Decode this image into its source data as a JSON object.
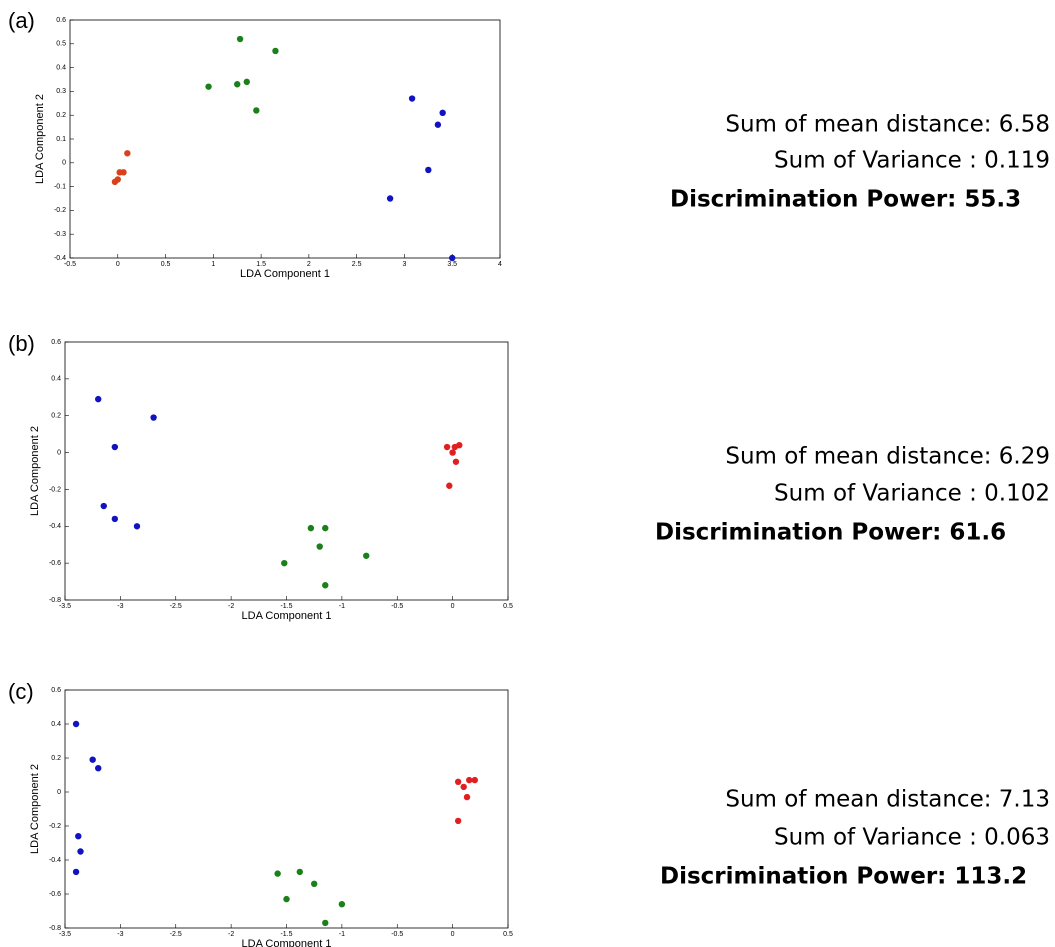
{
  "chart_data": [
    {
      "type": "scatter",
      "label": "(a)",
      "xlabel": "LDA Component 1",
      "ylabel": "LDA Component 2",
      "xlim": [
        -0.5,
        4
      ],
      "ylim": [
        -0.4,
        0.6
      ],
      "xticks": [
        -0.5,
        0,
        0.5,
        1,
        1.5,
        2,
        2.5,
        3,
        3.5,
        4
      ],
      "yticks": [
        -0.4,
        -0.3,
        -0.2,
        -0.1,
        0,
        0.1,
        0.2,
        0.3,
        0.4,
        0.5,
        0.6
      ],
      "series": [
        {
          "color": "#d9401c",
          "x": [
            -0.03,
            0,
            0.02,
            0.06,
            0.1
          ],
          "values": [
            -0.08,
            -0.07,
            -0.04,
            -0.04,
            0.04
          ]
        },
        {
          "color": "#1a801a",
          "x": [
            0.95,
            1.25,
            1.28,
            1.35,
            1.45,
            1.65
          ],
          "values": [
            0.32,
            0.33,
            0.52,
            0.34,
            0.22,
            0.47
          ]
        },
        {
          "color": "#1212c0",
          "x": [
            2.85,
            3.08,
            3.25,
            3.35,
            3.4,
            3.5
          ],
          "values": [
            -0.15,
            0.27,
            -0.03,
            0.16,
            0.21,
            -0.4
          ]
        }
      ],
      "annotations": [
        "Sum of mean distance: 6.58",
        "Sum of Variance : 0.119",
        "Discrimination Power: 55.3"
      ]
    },
    {
      "type": "scatter",
      "label": "(b)",
      "xlabel": "LDA Component 1",
      "ylabel": "LDA Component 2",
      "xlim": [
        -3.5,
        0.5
      ],
      "ylim": [
        -0.8,
        0.6
      ],
      "xticks": [
        -3.5,
        -3,
        -2.5,
        -2,
        -1.5,
        -1,
        -0.5,
        0,
        0.5
      ],
      "yticks": [
        -0.8,
        -0.6,
        -0.4,
        -0.2,
        0,
        0.2,
        0.4,
        0.6
      ],
      "series": [
        {
          "color": "#1212c0",
          "x": [
            -3.2,
            -2.7,
            -3.05,
            -3.15,
            -3.05,
            -2.85
          ],
          "values": [
            0.29,
            0.19,
            0.03,
            -0.29,
            -0.36,
            -0.4
          ]
        },
        {
          "color": "#e02020",
          "x": [
            -0.05,
            0,
            0.02,
            0.06,
            0.03,
            -0.03
          ],
          "values": [
            0.03,
            0,
            0.03,
            0.04,
            -0.05,
            -0.18
          ]
        },
        {
          "color": "#1a801a",
          "x": [
            -1.28,
            -1.15,
            -1.2,
            -0.78,
            -1.52,
            -1.15
          ],
          "values": [
            -0.41,
            -0.41,
            -0.51,
            -0.56,
            -0.6,
            -0.72
          ]
        }
      ],
      "annotations": [
        "Sum of mean distance: 6.29",
        "Sum of Variance : 0.102",
        "Discrimination Power: 61.6"
      ]
    },
    {
      "type": "scatter",
      "label": "(c)",
      "xlabel": "LDA Component 1",
      "ylabel": "LDA Component 2",
      "xlim": [
        -3.5,
        0.5
      ],
      "ylim": [
        -0.8,
        0.6
      ],
      "xticks": [
        -3.5,
        -3,
        -2.5,
        -2,
        -1.5,
        -1,
        -0.5,
        0,
        0.5
      ],
      "yticks": [
        -0.8,
        -0.6,
        -0.4,
        -0.2,
        0,
        0.2,
        0.4,
        0.6
      ],
      "series": [
        {
          "color": "#1212c0",
          "x": [
            -3.4,
            -3.25,
            -3.2,
            -3.38,
            -3.36,
            -3.4
          ],
          "values": [
            0.4,
            0.19,
            0.14,
            -0.26,
            -0.35,
            -0.47
          ]
        },
        {
          "color": "#e02020",
          "x": [
            0.05,
            0.1,
            0.15,
            0.2,
            0.13,
            0.05
          ],
          "values": [
            0.06,
            0.03,
            0.07,
            0.07,
            -0.03,
            -0.17
          ]
        },
        {
          "color": "#1a801a",
          "x": [
            -1.58,
            -1.38,
            -1.5,
            -1.25,
            -1.0,
            -1.15
          ],
          "values": [
            -0.48,
            -0.47,
            -0.63,
            -0.54,
            -0.66,
            -0.77
          ]
        }
      ],
      "annotations": [
        "Sum of mean distance: 7.13",
        "Sum of Variance : 0.063",
        "Discrimination Power: 113.2"
      ]
    }
  ]
}
